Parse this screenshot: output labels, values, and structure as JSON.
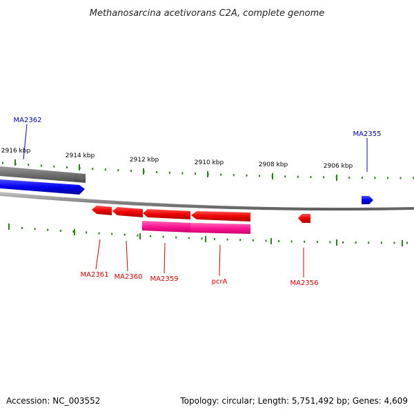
{
  "title": "Methanosarcina acetivorans C2A, complete genome",
  "footer": {
    "accession": "Accession: NC_003552",
    "summary": "Topology: circular; Length: 5,751,492 bp; Genes: 4,609"
  },
  "colors": {
    "tick": "#2e7d1e",
    "forward_gene": "#0000ee",
    "reverse_gene": "#ee0000",
    "forward_label": "#0000aa",
    "reverse_label": "#cc0000",
    "cds": "#ff1493",
    "backbone": "#888888",
    "track_gray": "#707070"
  },
  "scale": {
    "ticks_kbp": [
      2916,
      2914,
      2912,
      2910,
      2908,
      2906
    ],
    "tick_labels": [
      "2916 kbp",
      "2914 kbp",
      "2912 kbp",
      "2910 kbp",
      "2908 kbp",
      "2906 kbp"
    ]
  },
  "genes": [
    {
      "name": "MA2362",
      "strand": "forward",
      "label": "MA2362"
    },
    {
      "name": "MA2361",
      "strand": "reverse",
      "label": "MA2361"
    },
    {
      "name": "MA2360",
      "strand": "reverse",
      "label": "MA2360"
    },
    {
      "name": "MA2359",
      "strand": "reverse",
      "label": "MA2359"
    },
    {
      "name": "pcrA",
      "strand": "reverse",
      "label": "pcrA"
    },
    {
      "name": "MA2356",
      "strand": "reverse",
      "label": "MA2356"
    },
    {
      "name": "MA2355",
      "strand": "forward",
      "label": "MA2355"
    }
  ]
}
